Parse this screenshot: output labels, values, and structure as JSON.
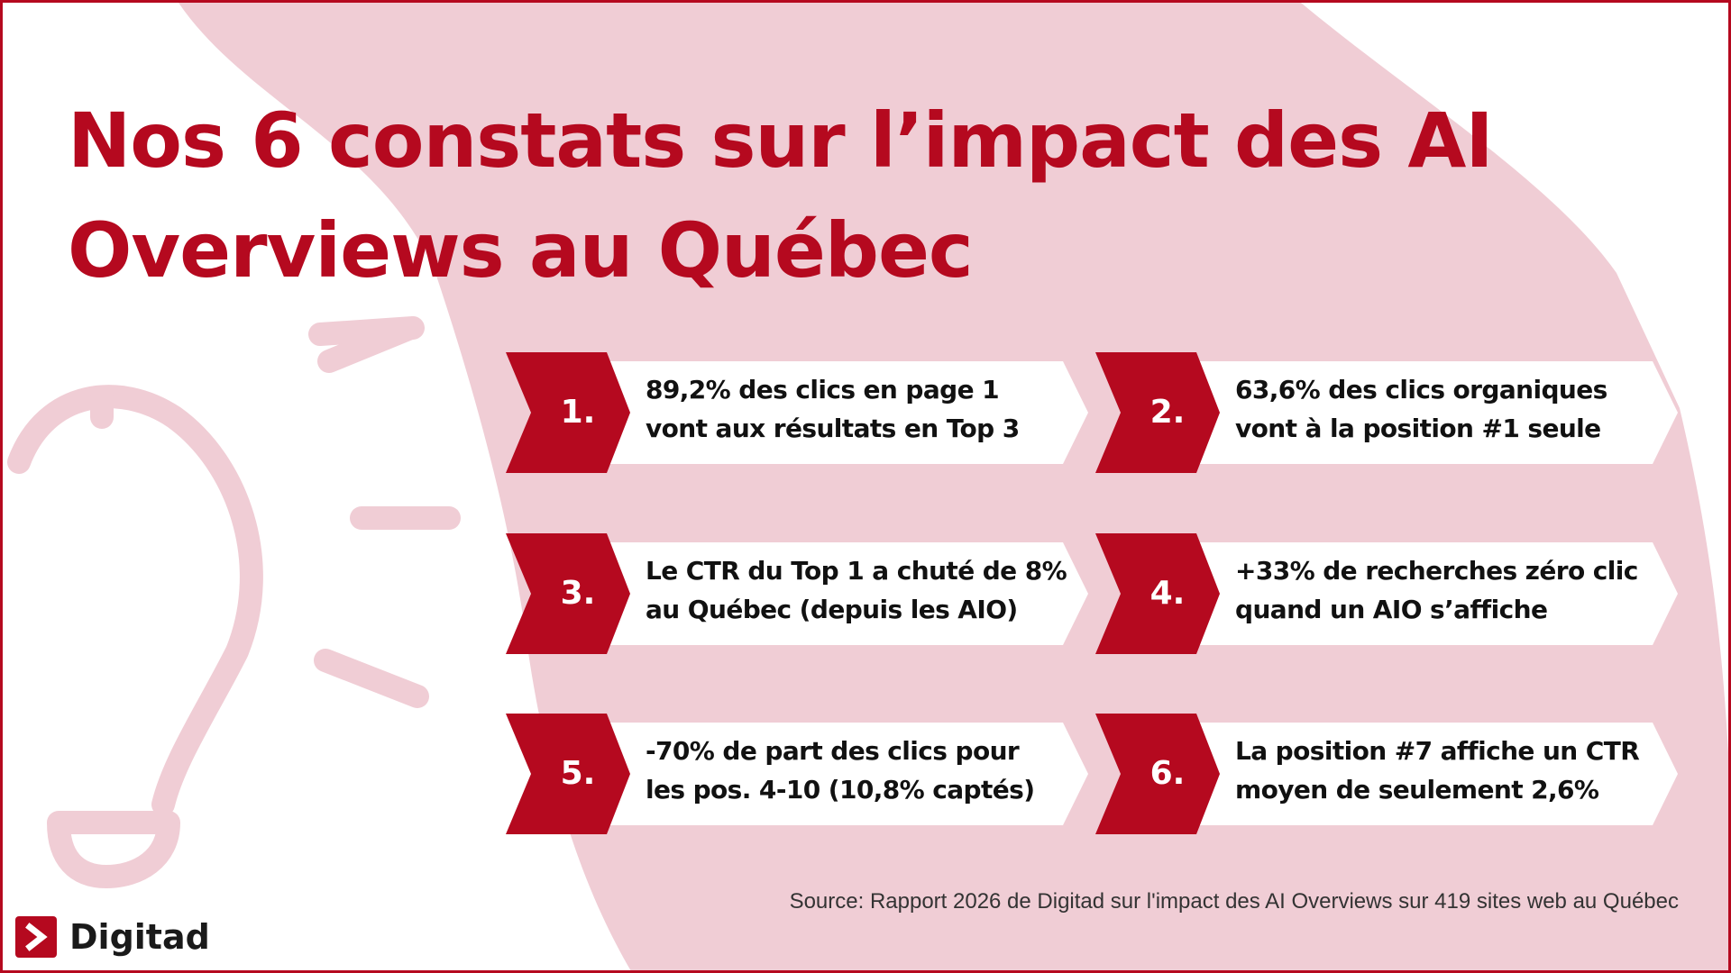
{
  "title": {
    "line1": "Nos 6 constats sur l’impact des AI",
    "line2": "Overviews au Québec"
  },
  "findings": [
    {
      "number": "1.",
      "line1": "89,2% des clics en page 1",
      "line2": "vont aux résultats en Top 3"
    },
    {
      "number": "2.",
      "line1": "63,6% des clics organiques",
      "line2": "vont à la position #1 seule"
    },
    {
      "number": "3.",
      "line1": "Le CTR du Top 1 a chuté de 8%",
      "line2": "au Québec (depuis les AIO)"
    },
    {
      "number": "4.",
      "line1": "+33% de recherches zéro clic",
      "line2": "quand un AIO s’affiche"
    },
    {
      "number": "5.",
      "line1": "-70% de part des clics pour",
      "line2": "les pos. 4-10 (10,8% captés)"
    },
    {
      "number": "6.",
      "line1": "La position #7 affiche un CTR",
      "line2": "moyen de seulement 2,6%"
    }
  ],
  "source": "Source: Rapport 2026 de Digitad sur l'impact des AI Overviews sur 419 sites web au Québec",
  "logo": {
    "text": "Digitad",
    "icon": "digitad-chevron-icon"
  },
  "decoration": {
    "icon": "lightbulb-icon"
  },
  "colors": {
    "brand_red": "#b5091f",
    "blob_pink": "#f0cdd5",
    "text_dark": "#111111",
    "white": "#ffffff"
  }
}
